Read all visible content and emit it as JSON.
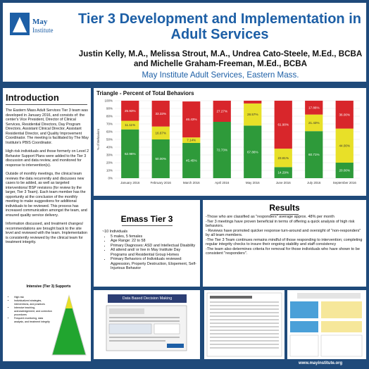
{
  "header": {
    "logo_text": "May Institute",
    "title": "Tier 3 Development and Implementation in Adult Services",
    "authors": "Justin Kelly, M.A., Melissa Strout, M.A., Undrea Cato-Steele, M.Ed., BCBA and Michelle Graham-Freeman, M.Ed., BCBA",
    "affiliation": "May Institute Adult Services, Eastern Mass."
  },
  "introduction": {
    "heading": "Introduction",
    "paragraphs": [
      "The Eastern Mass Adult Services Tier 3 team was developed in January 2016, and consists of: the center's Vice President, Director of Clinical Services, Residential Directors, Day Program Directors, Assistant Clinical Director, Assistant Residential Director, and Quality Improvement Coordinator. The meeting is facilitated by The May Institute's PBIS Coordinator.",
      "High risk individuals and those formerly on Level 2 Behavior Support Plans were added to the Tier 3 discussion and data review, and monitored for response to intervention(s).",
      "Outside of monthly meetings, the clinical team reviews the data recurrently and discusses new cases to be added, as well as targeted interventions/ BSP revisions (for review by the larger, Tier 3 Team). Each team member has the opportunity at the conclusion of the monthly meeting to make suggestions for additional individuals to be reviewed. This process has increased communication amongst the team, and ensured quality service delivery.",
      "Information discussed, and treatment changes/ recommendations are brought back to the site level and reviewed with the team. Implementation is consistently reviewed by the clinical team for treatment integrity."
    ],
    "pyramid": {
      "title": "Intensive (Tier 3) Supports",
      "items": [
        "High risk",
        "Individualized strategies, interventions, and practices",
        "Intensive teaching, acknowledgement, and correction procedures",
        "Frequent monitoring, data analysis, and treatment integrity"
      ]
    }
  },
  "chart_data": {
    "type": "bar",
    "title": "Triangle - Percent of Total Behaviors",
    "ylabel": "% of Behaviors",
    "ylim": [
      0,
      100
    ],
    "yticks": [
      "0%",
      "10%",
      "20%",
      "30%",
      "40%",
      "50%",
      "60%",
      "70%",
      "80%",
      "90%",
      "100%"
    ],
    "categories": [
      "January 2016",
      "February 2016",
      "March 2016",
      "April 2016",
      "May 2016",
      "June 2016",
      "July 2016",
      "September 2016"
    ],
    "series": [
      {
        "color": "#2e9a3a",
        "values": [
          62.96,
          50.0,
          45.45,
          72.73,
          67.86,
          14.29,
          60.71,
          20.0
        ],
        "labels": [
          "62.96%",
          "50.00%",
          "45.45%",
          "72.73%",
          "67.86%",
          "14.29%",
          "60.71%",
          "20.00%"
        ]
      },
      {
        "color": "#e8e028",
        "values": [
          11.11,
          16.67,
          7.14,
          0,
          28.57,
          23.81,
          21.43,
          44.0
        ],
        "labels": [
          "11.11%",
          "16.67%",
          "7.14%",
          "",
          "28.57%",
          "23.81%",
          "21.43%",
          "44.00%"
        ]
      },
      {
        "color": "#d8262b",
        "values": [
          25.93,
          33.33,
          46.43,
          27.27,
          3.57,
          61.9,
          17.86,
          36.0
        ],
        "labels": [
          "25.93%",
          "33.33%",
          "46.43%",
          "27.27%",
          "",
          "61.90%",
          "17.86%",
          "36.00%"
        ]
      }
    ]
  },
  "emass": {
    "heading": "Emass Tier 3",
    "lead": "~10 Individuals",
    "items": [
      "5 males, 5 females",
      "Age Range: 22 to 58",
      "Primary Diagnoses: ASD and Intellectual Disability",
      "All attend and/ or live in May Institute Day Programs and Residential Group Homes",
      "Primary Behaviors of Individuals reviewed: Aggression, Property Destruction, Elopement, Self-Injurious Behavior"
    ]
  },
  "results": {
    "heading": "Results",
    "lines": [
      "-Those who are classified as \"responders\" average approx. 48% per month",
      "-Tier 3 meetings have proven beneficial in terms of offering a quick analysis of high risk behaviors.",
      "- Reviews have promoted quicker response turn-around and oversight of \"non-responders\" by all team members.",
      "-The Tier 3 Team continues remains mindful of those responding to intervention; completing regular integrity checks to insure their ongoing stability and staff consistency",
      "-The team also determines criteria for removal for those individuals who have shown to be consistent \"responders\"."
    ]
  },
  "thumbnails": {
    "dashboard_title": "Data Based Decision Making"
  },
  "footer": {
    "url": "www.mayinstitute.org"
  }
}
